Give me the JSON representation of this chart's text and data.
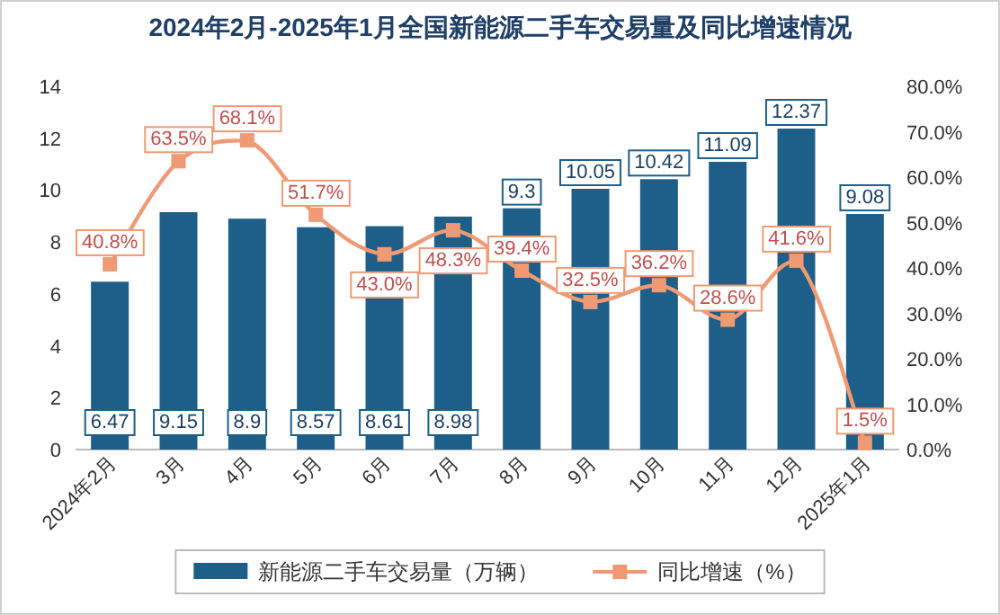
{
  "chart_data": {
    "type": "bar",
    "title": "2024年2月-2025年1月全国新能源二手车交易量及同比增速情况",
    "categories": [
      "2024年2月",
      "3月",
      "4月",
      "5月",
      "6月",
      "7月",
      "8月",
      "9月",
      "10月",
      "11月",
      "12月",
      "2025年1月"
    ],
    "series": [
      {
        "name": "新能源二手车交易量（万辆）",
        "color": "#1d5f88",
        "values": [
          6.47,
          9.15,
          8.9,
          8.57,
          8.61,
          8.98,
          9.3,
          10.05,
          10.42,
          11.09,
          12.37,
          9.08
        ],
        "value_labels": [
          "6.47",
          "9.15",
          "8.9",
          "8.57",
          "8.61",
          "8.98",
          "9.3",
          "10.05",
          "10.42",
          "11.09",
          "12.37",
          "9.08"
        ]
      },
      {
        "name": "同比增速（%）",
        "type": "line",
        "axis": "y2",
        "color": "#ef9a74",
        "marker": "square",
        "values": [
          40.8,
          63.5,
          68.1,
          51.7,
          43.0,
          48.3,
          39.4,
          32.5,
          36.2,
          28.6,
          41.6,
          1.5
        ],
        "value_labels": [
          "40.8%",
          "63.5%",
          "68.1%",
          "51.7%",
          "43.0%",
          "48.3%",
          "39.4%",
          "32.5%",
          "36.2%",
          "28.6%",
          "41.6%",
          "1.5%"
        ]
      }
    ],
    "ylim": [
      0,
      14
    ],
    "yticks": [
      0,
      2,
      4,
      6,
      8,
      10,
      12,
      14
    ],
    "y2lim": [
      0,
      80
    ],
    "y2ticks": [
      {
        "value": 0,
        "label": "0.0%"
      },
      {
        "value": 10,
        "label": "10.0%"
      },
      {
        "value": 20,
        "label": "20.0%"
      },
      {
        "value": 30,
        "label": "30.0%"
      },
      {
        "value": 40,
        "label": "40.0%"
      },
      {
        "value": 50,
        "label": "50.0%"
      },
      {
        "value": 60,
        "label": "60.0%"
      },
      {
        "value": 70,
        "label": "70.0%"
      },
      {
        "value": 80,
        "label": "80.0%"
      }
    ],
    "grid": false,
    "legend": "bottom"
  }
}
